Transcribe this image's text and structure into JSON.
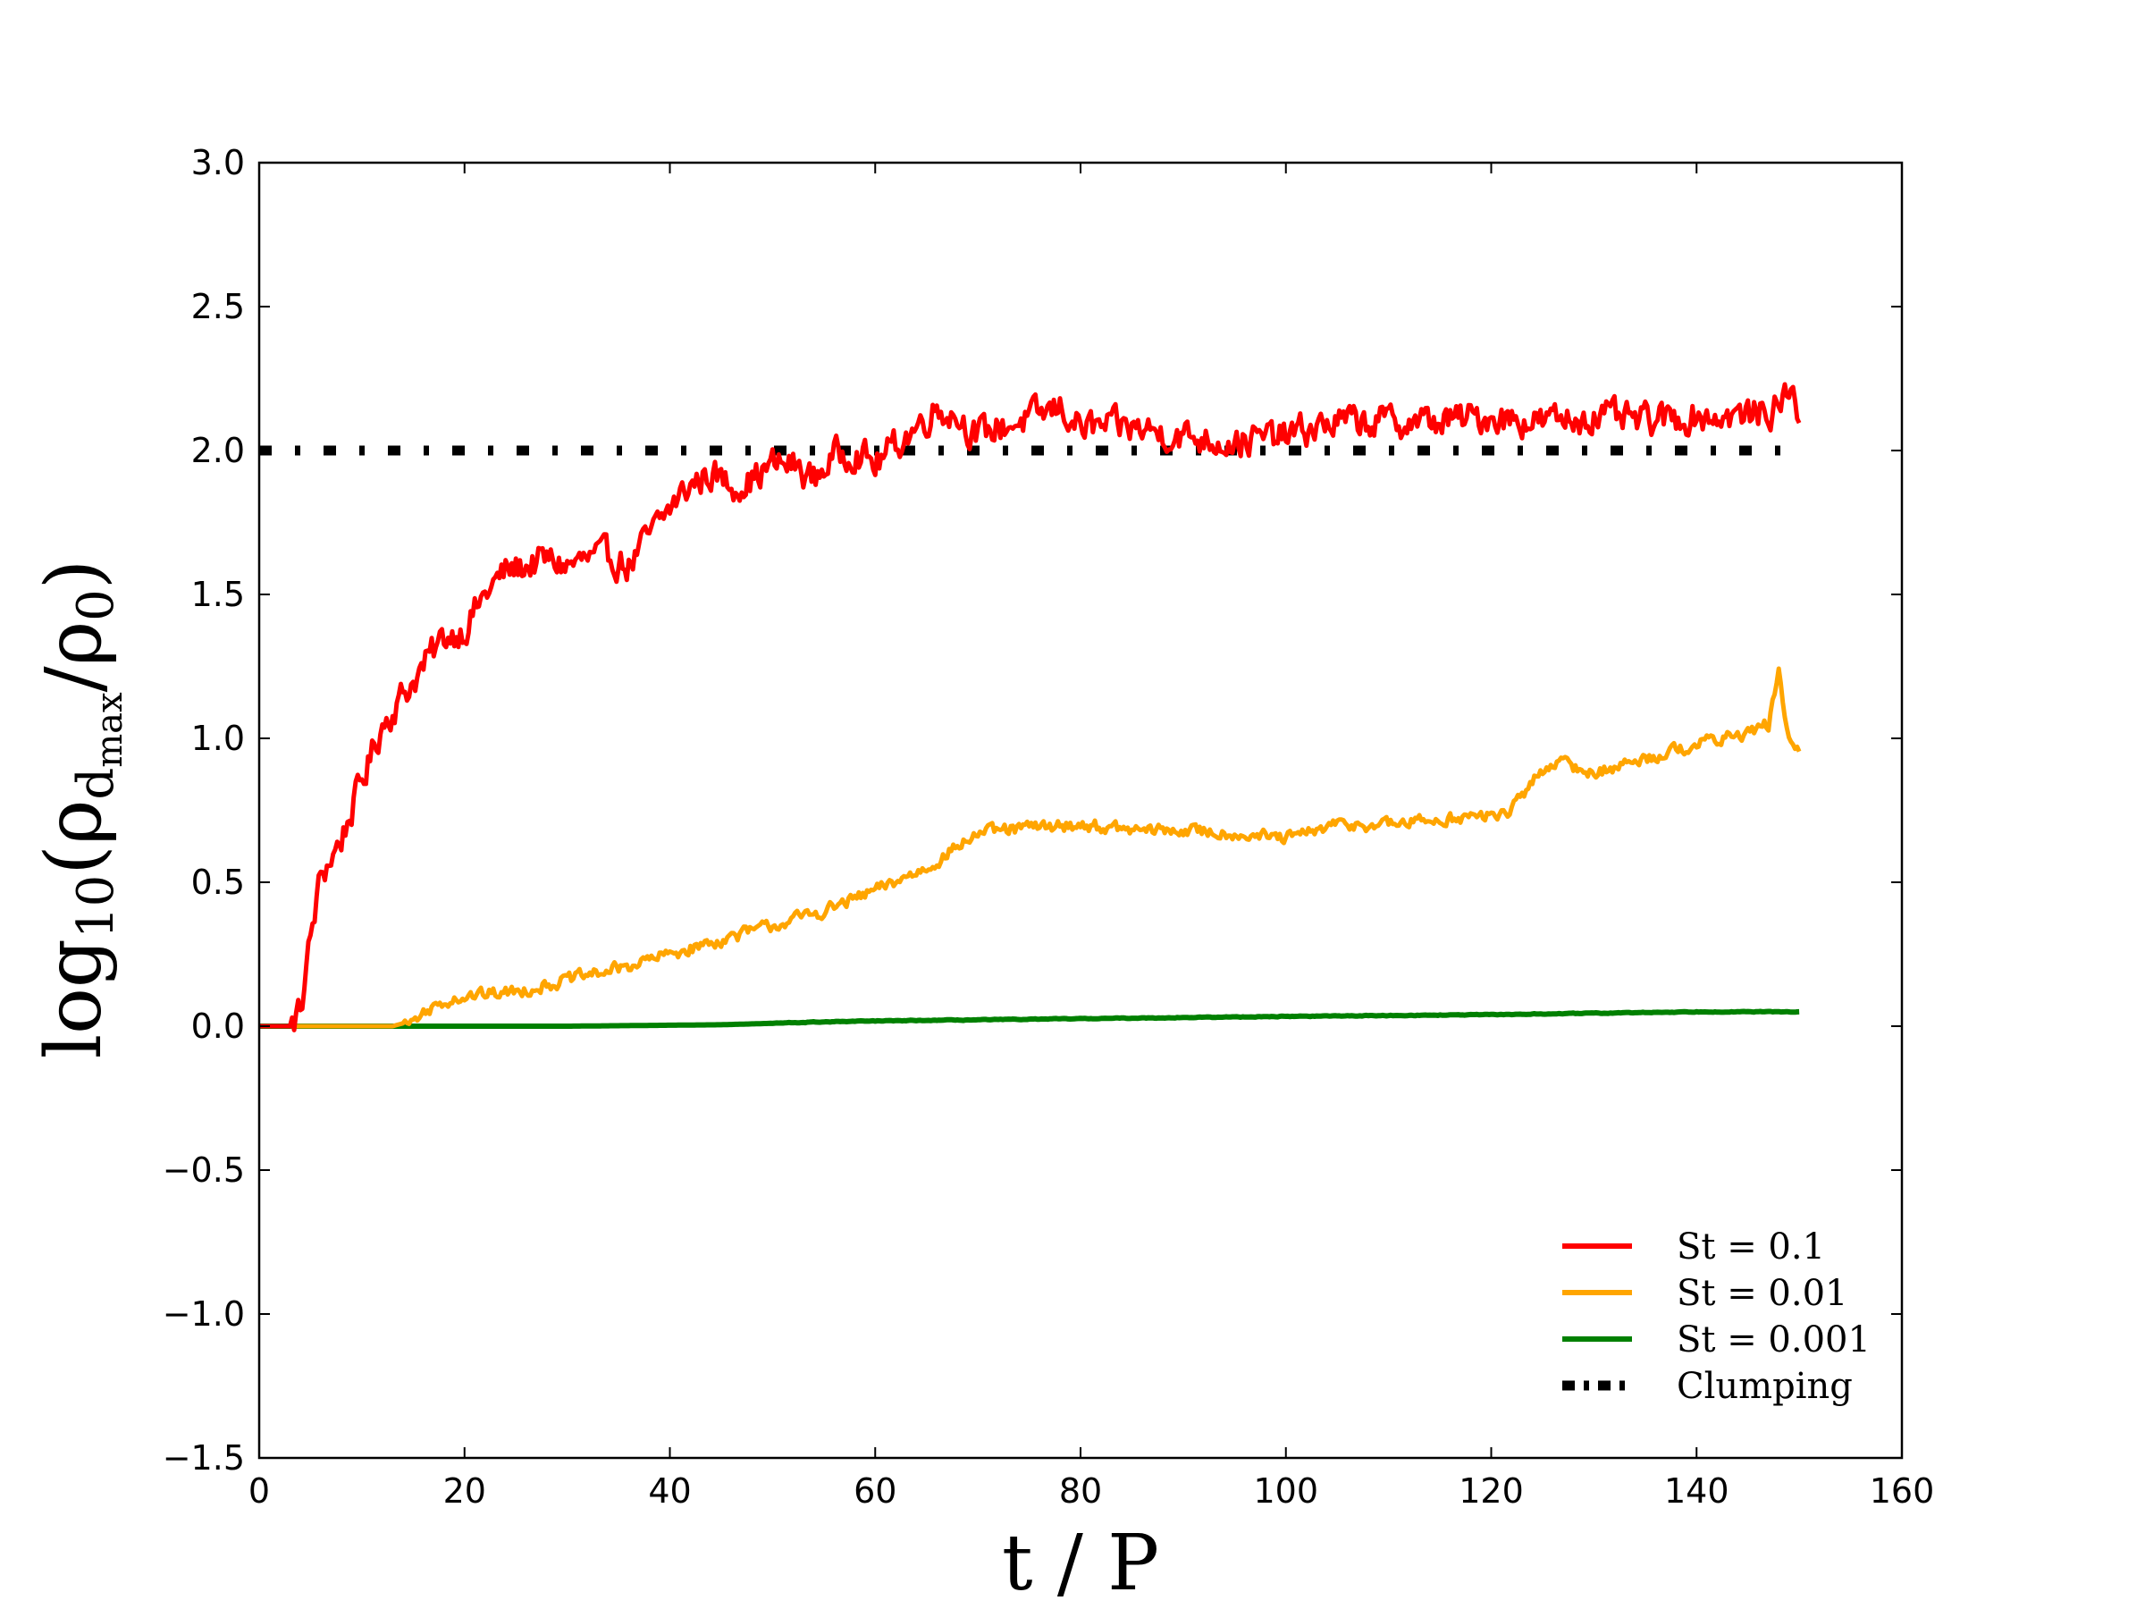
{
  "chart_data": {
    "type": "line",
    "xlabel": "t / P",
    "ylabel": {
      "prefix": "log",
      "log_base": "10",
      "open": "(ρ",
      "sub1": "d",
      "sub2": "max",
      "slash": "/ρ",
      "sub3": "0",
      "close": ")"
    },
    "xlim": [
      0,
      160
    ],
    "ylim": [
      -1.5,
      3.0
    ],
    "xticks": [
      0,
      20,
      40,
      60,
      80,
      100,
      120,
      140,
      160
    ],
    "yticks": [
      -1.5,
      -1.0,
      -0.5,
      0.0,
      0.5,
      1.0,
      1.5,
      2.0,
      2.5,
      3.0
    ],
    "xtick_labels": [
      "0",
      "20",
      "40",
      "60",
      "80",
      "100",
      "120",
      "140",
      "160"
    ],
    "ytick_labels": [
      "−1.5",
      "−1.0",
      "−0.5",
      "0.0",
      "0.5",
      "1.0",
      "1.5",
      "2.0",
      "2.5",
      "3.0"
    ],
    "grid": false,
    "legend_position": "bottom-right",
    "series": [
      {
        "name": "St = 0.1",
        "color": "#ff0000",
        "noise": 0.09,
        "x": [
          0,
          3,
          4,
          5,
          6,
          8,
          10,
          12,
          14,
          16,
          18,
          20,
          22,
          24,
          26,
          28,
          30,
          32,
          34,
          36,
          38,
          40,
          42,
          44,
          46,
          48,
          50,
          52,
          54,
          56,
          58,
          60,
          62,
          64,
          66,
          68,
          70,
          72,
          74,
          76,
          78,
          80,
          85,
          90,
          95,
          100,
          105,
          110,
          115,
          120,
          125,
          130,
          135,
          140,
          145,
          148,
          149,
          150
        ],
        "y": [
          0.0,
          0.0,
          0.05,
          0.3,
          0.52,
          0.65,
          0.85,
          1.05,
          1.15,
          1.25,
          1.35,
          1.38,
          1.5,
          1.58,
          1.6,
          1.62,
          1.6,
          1.62,
          1.63,
          1.6,
          1.7,
          1.8,
          1.88,
          1.92,
          1.88,
          1.9,
          1.95,
          1.95,
          1.9,
          1.98,
          2.0,
          1.95,
          2.02,
          2.08,
          2.15,
          2.12,
          2.05,
          2.08,
          2.1,
          2.12,
          2.15,
          2.08,
          2.08,
          2.05,
          2.03,
          2.05,
          2.1,
          2.1,
          2.1,
          2.12,
          2.1,
          2.12,
          2.1,
          2.12,
          2.12,
          2.15,
          2.22,
          2.12
        ]
      },
      {
        "name": "St = 0.01",
        "color": "#ffa500",
        "noise": 0.035,
        "x": [
          0,
          13,
          15,
          17,
          19,
          25,
          30,
          35,
          40,
          45,
          50,
          55,
          60,
          65,
          67,
          70,
          75,
          80,
          85,
          90,
          95,
          100,
          105,
          110,
          115,
          120,
          122,
          124,
          126,
          128,
          130,
          135,
          140,
          145,
          147,
          148,
          149,
          150
        ],
        "y": [
          0.0,
          0.0,
          0.02,
          0.07,
          0.1,
          0.12,
          0.16,
          0.2,
          0.25,
          0.3,
          0.35,
          0.4,
          0.47,
          0.55,
          0.6,
          0.67,
          0.69,
          0.7,
          0.68,
          0.68,
          0.67,
          0.65,
          0.7,
          0.7,
          0.72,
          0.73,
          0.75,
          0.85,
          0.92,
          0.9,
          0.88,
          0.93,
          0.98,
          1.02,
          1.05,
          1.22,
          1.0,
          0.95
        ]
      },
      {
        "name": "St = 0.001",
        "color": "#008000",
        "noise": 0.002,
        "x": [
          0,
          30,
          45,
          55,
          60,
          70,
          80,
          90,
          100,
          110,
          120,
          130,
          140,
          150
        ],
        "y": [
          0.0,
          0.0,
          0.005,
          0.015,
          0.018,
          0.022,
          0.026,
          0.03,
          0.034,
          0.037,
          0.04,
          0.045,
          0.05,
          0.05
        ]
      },
      {
        "name": "Clumping",
        "color": "#000000",
        "style": "dash-dot",
        "x": [
          0,
          150
        ],
        "y": [
          2.0,
          2.0
        ]
      }
    ]
  },
  "legend": {
    "entries": [
      {
        "label": "St = 0.1",
        "color": "#ff0000",
        "style": "solid"
      },
      {
        "label": "St = 0.01",
        "color": "#ffa500",
        "style": "solid"
      },
      {
        "label": "St = 0.001",
        "color": "#008000",
        "style": "solid"
      },
      {
        "label": "Clumping",
        "color": "#000000",
        "style": "dash-dot"
      }
    ]
  }
}
